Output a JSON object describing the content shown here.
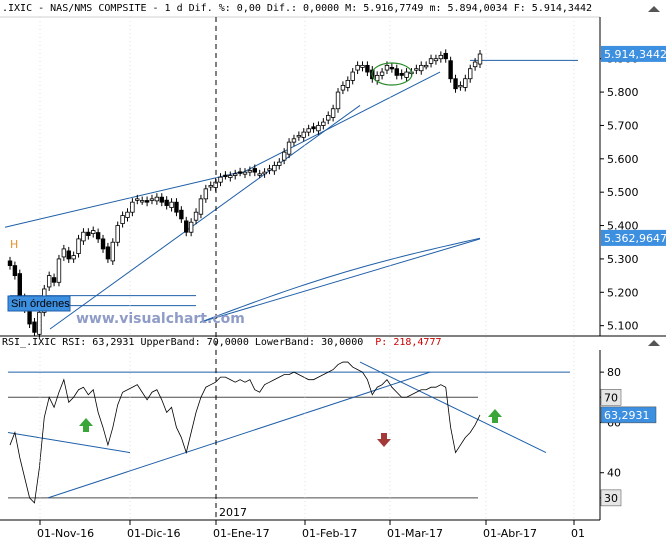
{
  "header": {
    "top_text": ".IXIC - NAS/NMS COMPSITE -  1 d Dif. %: 0,00 Dif.: 0,0000 M: 5.916,7749 m: 5.894,0034 F: 5.914,3442",
    "rsi_text_a": "RSI_.IXIC RSI: 63,2931 UpperBand: 70,0000 LowerBand: 30,0000",
    "rsi_text_b": "P: 218,4777"
  },
  "labels": {
    "watermark": "www.visualchart.com",
    "order_box": "Sin órdenes",
    "h_marker": "H",
    "year_label": "2017"
  },
  "colors": {
    "trendline": "#1f5fa8",
    "price_tag": "#3d8fe0",
    "rsi_line": "#000000",
    "up_arrow": "#3aa63a",
    "down_arrow": "#a33a3a",
    "gridline": "#4a4a4a"
  },
  "chart_data": [
    {
      "type": "candlestick",
      "title": ".IXIC - NAS/NMS COMPSITE",
      "x_ticks": [
        "01-Nov-16",
        "01-Dic-16",
        "01-Ene-17",
        "01-Feb-17",
        "01-Mar-17",
        "01-Abr-17",
        "01"
      ],
      "y_ticks": [
        "5.900",
        "5.800",
        "5.700",
        "5.600",
        "5.500",
        "5.400",
        "5.300",
        "5.200",
        "5.100"
      ],
      "ylim": [
        5075,
        6010
      ],
      "price_tags": [
        "5.914,3442",
        "5.362,9647"
      ],
      "last_close": 5914.3442,
      "moving_average_last": 5362.9647,
      "closes": [
        5280,
        5250,
        5190,
        5150,
        5105,
        5080,
        5140,
        5210,
        5250,
        5230,
        5300,
        5330,
        5300,
        5310,
        5360,
        5380,
        5370,
        5385,
        5360,
        5330,
        5300,
        5350,
        5400,
        5430,
        5440,
        5470,
        5480,
        5475,
        5470,
        5480,
        5485,
        5470,
        5460,
        5470,
        5440,
        5420,
        5380,
        5410,
        5440,
        5480,
        5510,
        5520,
        5530,
        5545,
        5550,
        5550,
        5555,
        5560,
        5560,
        5565,
        5560,
        5555,
        5560,
        5570,
        5580,
        5590,
        5620,
        5650,
        5660,
        5670,
        5680,
        5690,
        5690,
        5700,
        5710,
        5730,
        5750,
        5800,
        5820,
        5835,
        5860,
        5880,
        5880,
        5860,
        5840,
        5850,
        5860,
        5880,
        5870,
        5850,
        5850,
        5860,
        5860,
        5870,
        5880,
        5880,
        5900,
        5900,
        5910,
        5900,
        5840,
        5810,
        5820,
        5840,
        5870,
        5890,
        5914
      ]
    },
    {
      "type": "line",
      "title": "RSI_.IXIC",
      "series": [
        {
          "name": "RSI",
          "values": [
            51,
            56,
            46,
            38,
            30,
            28,
            42,
            62,
            70,
            66,
            72,
            77,
            68,
            70,
            73,
            74,
            71,
            73,
            64,
            58,
            51,
            58,
            67,
            72,
            73,
            74,
            75,
            72,
            69,
            72,
            73,
            69,
            64,
            66,
            58,
            54,
            48,
            56,
            64,
            70,
            74,
            75,
            76,
            78,
            78,
            77,
            76,
            77,
            76,
            77,
            73,
            72,
            75,
            76,
            77,
            78,
            79,
            79,
            80,
            79,
            78,
            77,
            77,
            78,
            79,
            80,
            81,
            83,
            84,
            84,
            82,
            81,
            80,
            77,
            71,
            74,
            75,
            77,
            74,
            72,
            70,
            70,
            71,
            72,
            73,
            73,
            74,
            74,
            75,
            74,
            58,
            48,
            51,
            54,
            56,
            59,
            63
          ]
        }
      ],
      "y_ticks": [
        "80",
        "70",
        "60",
        "40",
        "30"
      ],
      "ylim": [
        22,
        88
      ],
      "upper_band": 70,
      "lower_band": 30,
      "last_value_tag": "63,2931",
      "upper_tag": "70",
      "lower_tag": "30"
    }
  ]
}
